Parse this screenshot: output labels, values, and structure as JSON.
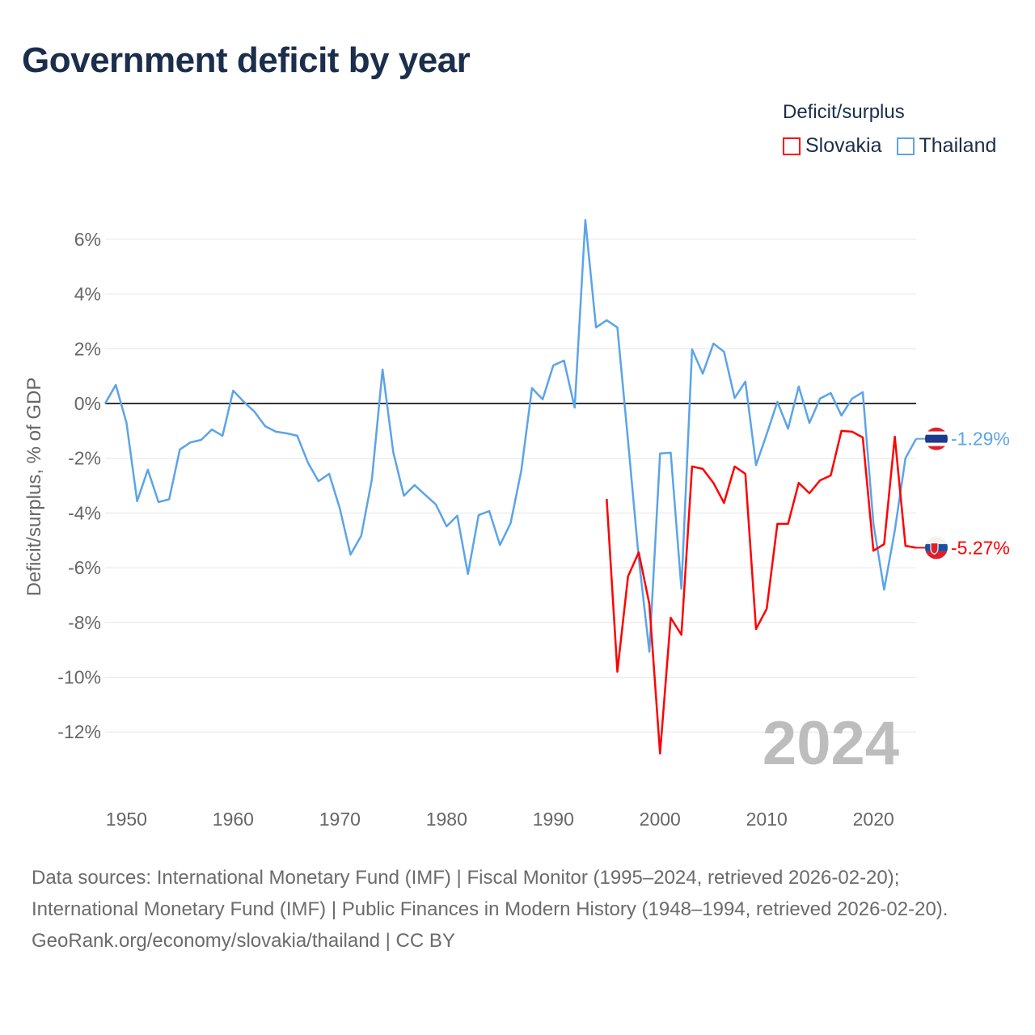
{
  "title": "Government deficit by year",
  "legend": {
    "title": "Deficit/surplus",
    "items": [
      {
        "label": "Slovakia",
        "color": "#ff0000"
      },
      {
        "label": "Thailand",
        "color": "#5ba4e8"
      }
    ]
  },
  "chart_data": {
    "type": "line",
    "title": "Government deficit by year",
    "ylabel": "Deficit/surplus, % of GDP",
    "xlabel": "",
    "xlim": [
      1948,
      2024
    ],
    "ylim": [
      -13.5,
      7
    ],
    "yticks": [
      6,
      4,
      2,
      0,
      -2,
      -4,
      -6,
      -8,
      -10,
      -12
    ],
    "ytick_labels": [
      "6%",
      "4%",
      "2%",
      "0%",
      "-2%",
      "-4%",
      "-6%",
      "-8%",
      "-10%",
      "-12%"
    ],
    "xticks": [
      1950,
      1960,
      1970,
      1980,
      1990,
      2000,
      2010,
      2020
    ],
    "xtick_labels": [
      "1950",
      "1960",
      "1970",
      "1980",
      "1990",
      "2000",
      "2010",
      "2020"
    ],
    "grid": true,
    "legend_position": "top-right",
    "year_watermark": "2024",
    "series": [
      {
        "name": "Thailand",
        "color": "#5ba4e8",
        "end_label": "-1.29%",
        "start_year": 1948,
        "values": [
          0,
          0.68,
          -0.7,
          -3.57,
          -2.42,
          -3.6,
          -3.5,
          -1.68,
          -1.42,
          -1.33,
          -0.95,
          -1.18,
          0.47,
          0.06,
          -0.3,
          -0.83,
          -1.03,
          -1.09,
          -1.18,
          -2.16,
          -2.84,
          -2.57,
          -3.84,
          -5.52,
          -4.84,
          -2.78,
          1.24,
          -1.77,
          -3.37,
          -2.98,
          -3.34,
          -3.69,
          -4.49,
          -4.1,
          -6.23,
          -4.08,
          -3.93,
          -5.17,
          -4.37,
          -2.45,
          0.56,
          0.15,
          1.39,
          1.57,
          -0.15,
          6.7,
          2.78,
          3.04,
          2.78,
          -1.36,
          -5.64,
          -9.07,
          -1.83,
          -1.8,
          -6.77,
          1.98,
          1.09,
          2.19,
          1.89,
          0.2,
          0.8,
          -2.25,
          -1.12,
          0.06,
          -0.92,
          0.62,
          -0.71,
          0.18,
          0.38,
          -0.44,
          0.18,
          0.41,
          -4.4,
          -6.8,
          -4.64,
          -2.0,
          -1.29
        ]
      },
      {
        "name": "Slovakia",
        "color": "#ff0000",
        "end_label": "-5.27%",
        "start_year": 1995,
        "values": [
          -3.49,
          -9.8,
          -6.32,
          -5.44,
          -7.33,
          -12.79,
          -7.83,
          -8.45,
          -2.3,
          -2.39,
          -2.9,
          -3.63,
          -2.3,
          -2.57,
          -8.24,
          -7.5,
          -4.4,
          -4.4,
          -2.9,
          -3.28,
          -2.81,
          -2.63,
          -1.0,
          -1.03,
          -1.24,
          -5.38,
          -5.14,
          -1.21,
          -5.2,
          -5.27
        ]
      }
    ]
  },
  "footer": {
    "sources": "Data sources: International Monetary Fund (IMF) | Fiscal Monitor (1995–2024, retrieved 2026-02-20); International Monetary Fund (IMF) | Public Finances in Modern History (1948–1994, retrieved 2026-02-20).",
    "credit": "GeoRank.org/economy/slovakia/thailand | CC BY"
  }
}
